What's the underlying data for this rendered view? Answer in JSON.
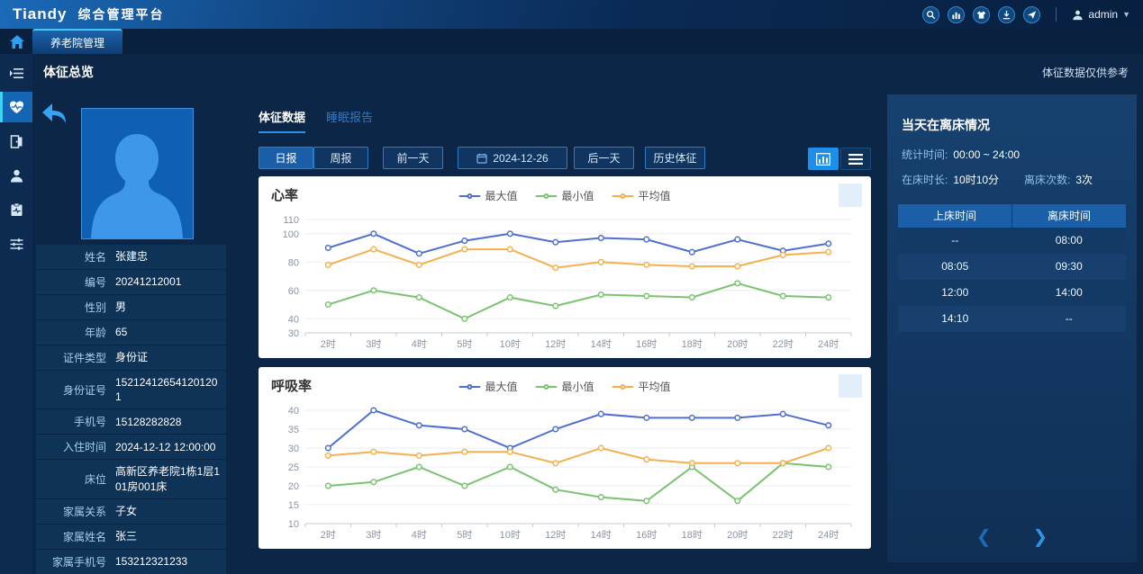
{
  "header": {
    "logo": "Tiandy",
    "product": "综合管理平台",
    "user": "admin",
    "icons": [
      "search-icon",
      "bar-chart-icon",
      "wardrobe-icon",
      "download-icon",
      "send-icon"
    ]
  },
  "tabbar": {
    "active_tab": "养老院管理",
    "icons": [
      "home-icon"
    ]
  },
  "sidebar": {
    "icons": [
      "menu-unfold-icon",
      "heart-pulse-icon",
      "door-exit-icon",
      "person-icon",
      "clipboard-pulse-icon",
      "sliders-icon"
    ],
    "active": "heart-pulse-icon"
  },
  "page": {
    "title": "体征总览",
    "disclaimer": "体征数据仅供参考"
  },
  "patient": {
    "rows": [
      {
        "label": "姓名",
        "value": "张建忠"
      },
      {
        "label": "编号",
        "value": "20241212001"
      },
      {
        "label": "性别",
        "value": "男"
      },
      {
        "label": "年龄",
        "value": "65"
      },
      {
        "label": "证件类型",
        "value": "身份证"
      },
      {
        "label": "身份证号",
        "value": "152124126541201201"
      },
      {
        "label": "手机号",
        "value": "15128282828"
      },
      {
        "label": "入住时间",
        "value": "2024-12-12 12:00:00"
      },
      {
        "label": "床位",
        "value": "高新区养老院1栋1层101房001床"
      },
      {
        "label": "家属关系",
        "value": "子女"
      },
      {
        "label": "家属姓名",
        "value": "张三"
      },
      {
        "label": "家属手机号",
        "value": "153212321233"
      }
    ]
  },
  "vitals": {
    "tabs": [
      {
        "label": "体征数据",
        "active": true
      },
      {
        "label": "睡眠报告",
        "active": false
      }
    ],
    "toolbar": {
      "daily": "日报",
      "weekly": "周报",
      "prev_day": "前一天",
      "date": "2024-12-26",
      "next_day": "后一天",
      "history": "历史体征",
      "view_icons": [
        "chart-view-icon",
        "list-view-icon"
      ]
    }
  },
  "bed_panel": {
    "title": "当天在离床情况",
    "stat_time_label": "统计时间:",
    "stat_time_value": "00:00 ~ 24:00",
    "in_bed_label": "在床时长:",
    "in_bed_value": "10时10分",
    "leave_label": "离床次数:",
    "leave_value": "3次",
    "table": {
      "headers": [
        "上床时间",
        "离床时间"
      ],
      "rows": [
        [
          "--",
          "08:00"
        ],
        [
          "08:05",
          "09:30"
        ],
        [
          "12:00",
          "14:00"
        ],
        [
          "14:10",
          "--"
        ]
      ]
    }
  },
  "colors": {
    "accent": "#1e8fe8",
    "series_max": "#4e6fd0",
    "series_min": "#7ac36f",
    "series_avg": "#f5b04e"
  },
  "chart_data": [
    {
      "type": "line",
      "title": "心率",
      "x": [
        "2时",
        "3时",
        "4时",
        "5时",
        "10时",
        "12时",
        "14时",
        "16时",
        "18时",
        "20时",
        "22时",
        "24时"
      ],
      "ylim": [
        30,
        110
      ],
      "yticks": [
        30,
        40,
        60,
        80,
        100,
        110
      ],
      "grid": true,
      "legend_position": "top-center",
      "series": [
        {
          "name": "最大值",
          "color": "#4e6fd0",
          "values": [
            90,
            100,
            86,
            95,
            100,
            94,
            97,
            96,
            87,
            96,
            88,
            93
          ]
        },
        {
          "name": "最小值",
          "color": "#7ac36f",
          "values": [
            50,
            60,
            55,
            40,
            55,
            49,
            57,
            56,
            55,
            65,
            56,
            55
          ]
        },
        {
          "name": "平均值",
          "color": "#f5b04e",
          "values": [
            78,
            89,
            78,
            89,
            89,
            76,
            80,
            78,
            77,
            77,
            85,
            87
          ]
        }
      ]
    },
    {
      "type": "line",
      "title": "呼吸率",
      "x": [
        "2时",
        "3时",
        "4时",
        "5时",
        "10时",
        "12时",
        "14时",
        "16时",
        "18时",
        "20时",
        "22时",
        "24时"
      ],
      "ylim": [
        10,
        40
      ],
      "yticks": [
        10,
        15,
        20,
        25,
        30,
        35,
        40
      ],
      "grid": true,
      "legend_position": "top-center",
      "series": [
        {
          "name": "最大值",
          "color": "#4e6fd0",
          "values": [
            30,
            40,
            36,
            35,
            30,
            35,
            39,
            38,
            38,
            38,
            39,
            36
          ]
        },
        {
          "name": "最小值",
          "color": "#7ac36f",
          "values": [
            20,
            21,
            25,
            20,
            25,
            19,
            17,
            16,
            25,
            16,
            26,
            25
          ]
        },
        {
          "name": "平均值",
          "color": "#f5b04e",
          "values": [
            28,
            29,
            28,
            29,
            29,
            26,
            30,
            27,
            26,
            26,
            26,
            30
          ]
        }
      ]
    }
  ]
}
